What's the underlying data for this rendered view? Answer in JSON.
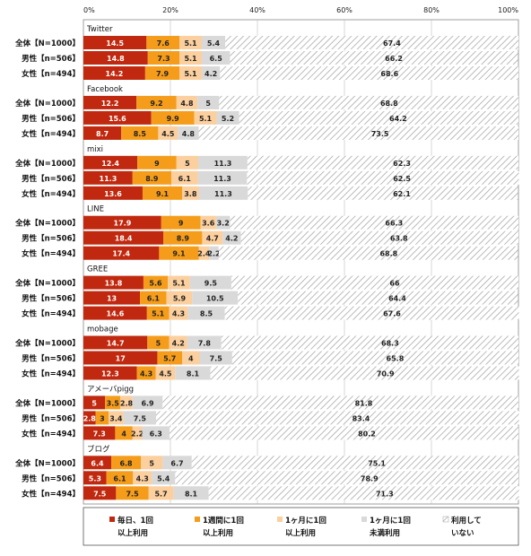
{
  "chart_data": {
    "type": "bar",
    "orientation": "horizontal",
    "stacked": true,
    "percent_stacked": true,
    "xlim": [
      0,
      100
    ],
    "x_ticks": [
      "0%",
      "20%",
      "40%",
      "60%",
      "80%",
      "100%"
    ],
    "grid": true,
    "legend_position": "bottom",
    "series": [
      {
        "name": "毎日、1回以上利用",
        "color": "#c0280f",
        "label_color": "#ffffff"
      },
      {
        "name": "1週間に1回以上利用",
        "color": "#f59d1b",
        "label_color": "#222222"
      },
      {
        "name": "1ヶ月に1回以上利用",
        "color": "#fbcf9e",
        "label_color": "#222222"
      },
      {
        "name": "1ヶ月に1回未満利用",
        "color": "#d9d9d9",
        "label_color": "#222222"
      },
      {
        "name": "利用していない",
        "color": "#ffffff",
        "pattern": "diagonal-hatch",
        "label_color": "#222222"
      }
    ],
    "legend": {
      "items": [
        {
          "line1": "毎日、1回",
          "line2": "以上利用"
        },
        {
          "line1": "1週間に1回",
          "line2": "以上利用"
        },
        {
          "line1": "1ヶ月に1回",
          "line2": "以上利用"
        },
        {
          "line1": "1ヶ月に1回",
          "line2": "未満利用"
        },
        {
          "line1": "利用して",
          "line2": "いない"
        }
      ]
    },
    "groups": [
      {
        "name": "Twitter",
        "rows": [
          {
            "label": "全体【N=1000】",
            "values": [
              14.5,
              7.6,
              5.1,
              5.4,
              67.4
            ]
          },
          {
            "label": "男性【n=506】",
            "values": [
              14.8,
              7.3,
              5.1,
              6.5,
              66.2
            ]
          },
          {
            "label": "女性【n=494】",
            "values": [
              14.2,
              7.9,
              5.1,
              4.2,
              68.6
            ]
          }
        ]
      },
      {
        "name": "Facebook",
        "rows": [
          {
            "label": "全体【N=1000】",
            "values": [
              12.2,
              9.2,
              4.8,
              5.0,
              68.8
            ]
          },
          {
            "label": "男性【n=506】",
            "values": [
              15.6,
              9.9,
              5.1,
              5.2,
              64.2
            ]
          },
          {
            "label": "女性【n=494】",
            "values": [
              8.7,
              8.5,
              4.5,
              4.8,
              73.5
            ]
          }
        ]
      },
      {
        "name": "mixi",
        "rows": [
          {
            "label": "全体【N=1000】",
            "values": [
              12.4,
              9.0,
              5.0,
              11.3,
              62.3
            ]
          },
          {
            "label": "男性【n=506】",
            "values": [
              11.3,
              8.9,
              6.1,
              11.3,
              62.5
            ]
          },
          {
            "label": "女性【n=494】",
            "values": [
              13.6,
              9.1,
              3.8,
              11.3,
              62.1
            ]
          }
        ]
      },
      {
        "name": "LINE",
        "rows": [
          {
            "label": "全体【N=1000】",
            "values": [
              17.9,
              9.0,
              3.6,
              3.2,
              66.3
            ]
          },
          {
            "label": "男性【n=506】",
            "values": [
              18.4,
              8.9,
              4.7,
              4.2,
              63.8
            ]
          },
          {
            "label": "女性【n=494】",
            "values": [
              17.4,
              9.1,
              2.4,
              2.2,
              68.8
            ]
          }
        ]
      },
      {
        "name": "GREE",
        "rows": [
          {
            "label": "全体【N=1000】",
            "values": [
              13.8,
              5.6,
              5.1,
              9.5,
              66.0
            ]
          },
          {
            "label": "男性【n=506】",
            "values": [
              13.0,
              6.1,
              5.9,
              10.5,
              64.4
            ]
          },
          {
            "label": "女性【n=494】",
            "values": [
              14.6,
              5.1,
              4.3,
              8.5,
              67.6
            ]
          }
        ]
      },
      {
        "name": "mobage",
        "rows": [
          {
            "label": "全体【N=1000】",
            "values": [
              14.7,
              5.0,
              4.2,
              7.8,
              68.3
            ]
          },
          {
            "label": "男性【n=506】",
            "values": [
              17.0,
              5.7,
              4.0,
              7.5,
              65.8
            ]
          },
          {
            "label": "女性【n=494】",
            "values": [
              12.3,
              4.3,
              4.5,
              8.1,
              70.9
            ]
          }
        ]
      },
      {
        "name": "アメーバpigg",
        "rows": [
          {
            "label": "全体【N=1000】",
            "values": [
              5.0,
              3.5,
              2.8,
              6.9,
              81.8
            ]
          },
          {
            "label": "男性【n=506】",
            "values": [
              2.8,
              3.0,
              3.4,
              7.5,
              83.4
            ]
          },
          {
            "label": "女性【n=494】",
            "values": [
              7.3,
              4.0,
              2.2,
              6.3,
              80.2
            ]
          }
        ]
      },
      {
        "name": "ブログ",
        "rows": [
          {
            "label": "全体【N=1000】",
            "values": [
              6.4,
              6.8,
              5.0,
              6.7,
              75.1
            ]
          },
          {
            "label": "男性【n=506】",
            "values": [
              5.3,
              6.1,
              4.3,
              5.4,
              78.9
            ]
          },
          {
            "label": "女性【n=494】",
            "values": [
              7.5,
              7.5,
              5.7,
              8.1,
              71.3
            ]
          }
        ]
      }
    ]
  }
}
